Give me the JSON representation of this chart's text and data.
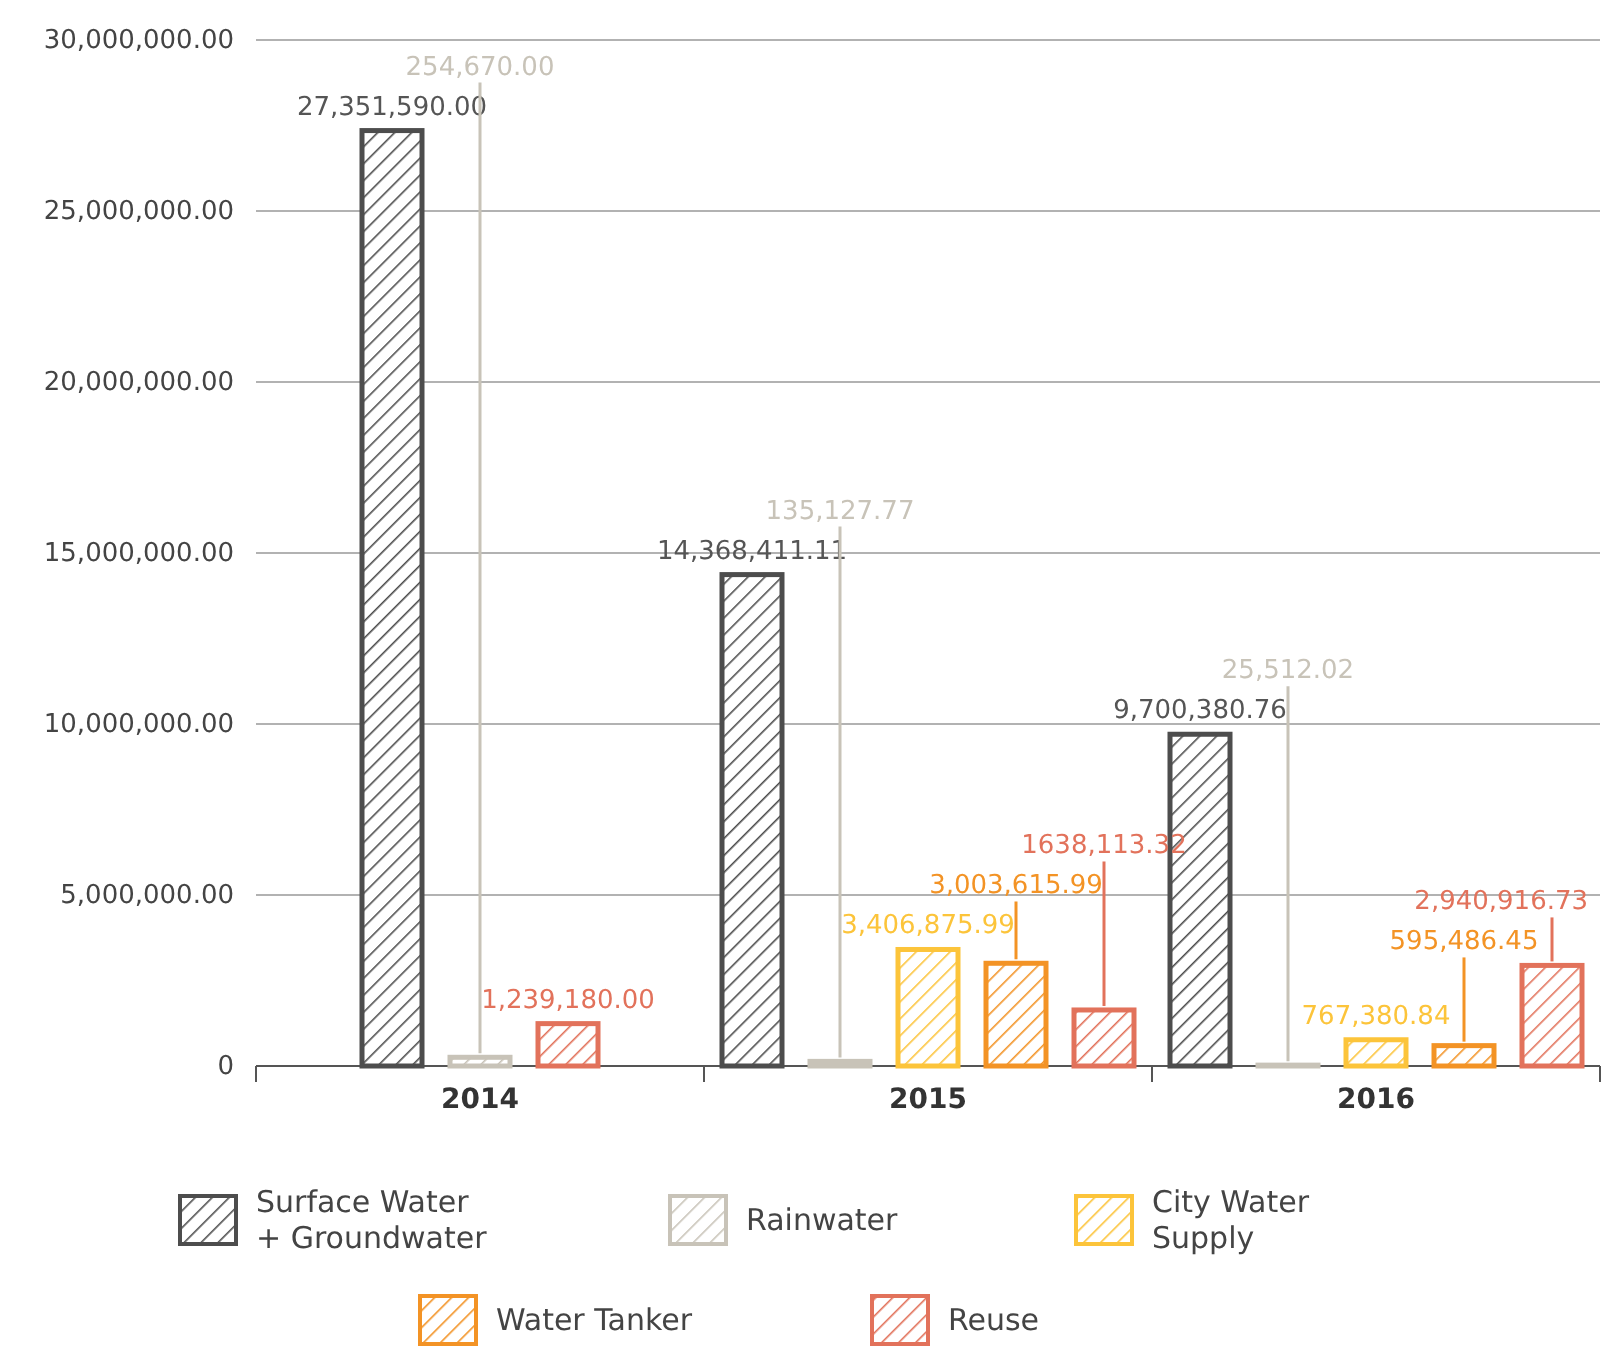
{
  "chart_data": {
    "type": "bar",
    "categories": [
      "2014",
      "2015",
      "2016"
    ],
    "ylim": [
      0,
      30000000
    ],
    "yticks": [
      {
        "value": 0,
        "label": "0"
      },
      {
        "value": 5000000,
        "label": "5,000,000.00"
      },
      {
        "value": 10000000,
        "label": "10,000,000.00"
      },
      {
        "value": 15000000,
        "label": "15,000,000.00"
      },
      {
        "value": 20000000,
        "label": "20,000,000.00"
      },
      {
        "value": 25000000,
        "label": "25,000,000.00"
      },
      {
        "value": 30000000,
        "label": "30,000,000.00"
      }
    ],
    "grid": "y",
    "legend": "bottom",
    "series": [
      {
        "name": "Surface Water + Groundwater",
        "color": "#4d4d4d",
        "values": [
          27351590.0,
          14368411.11,
          9700380.76
        ],
        "value_labels": [
          "27,351,590.00",
          "14,368,411.11",
          "9,700,380.76"
        ]
      },
      {
        "name": "Rainwater",
        "color": "#c8c3b8",
        "values": [
          254670.0,
          135127.77,
          25512.02
        ],
        "value_labels": [
          "254,670.00",
          "135,127.77",
          "25,512.02"
        ]
      },
      {
        "name": "City Water Supply",
        "color": "#fcc43a",
        "values": [
          null,
          3406875.99,
          767380.84
        ],
        "value_labels": [
          null,
          "3,406,875.99",
          "767,380.84"
        ]
      },
      {
        "name": "Water Tanker",
        "color": "#f39325",
        "values": [
          null,
          3003615.99,
          595486.45
        ],
        "value_labels": [
          null,
          "3,003,615.99",
          "595,486.45"
        ]
      },
      {
        "name": "Reuse",
        "color": "#e2725b",
        "values": [
          1239180.0,
          1638113.32,
          2940916.73
        ],
        "value_labels": [
          "1,239,180.00",
          "1638,113.32",
          "2,940,916.73"
        ]
      }
    ]
  }
}
